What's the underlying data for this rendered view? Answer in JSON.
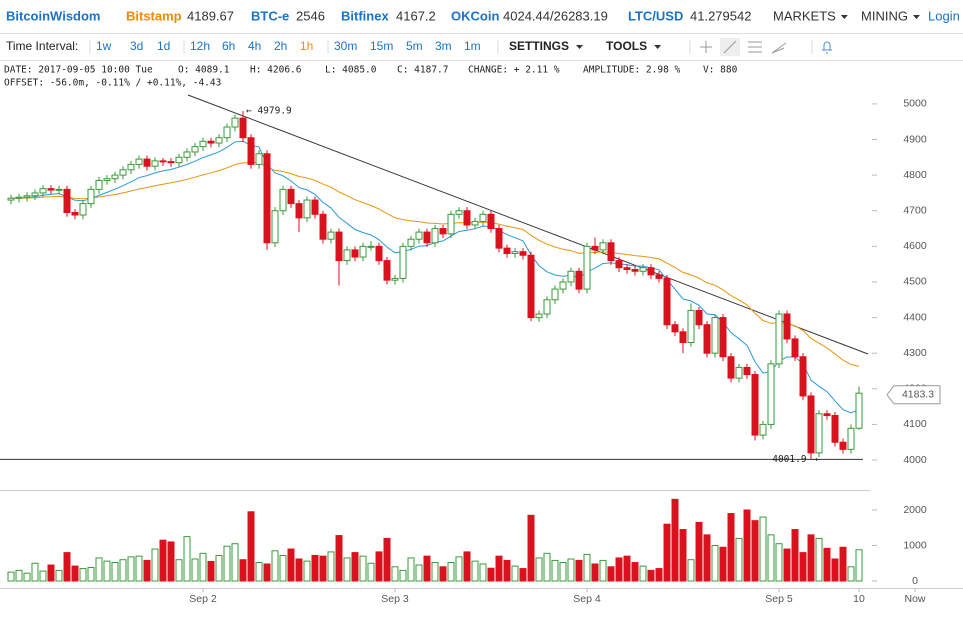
{
  "nav": {
    "brand": "BitcoinWisdom",
    "markets": [
      {
        "name": "Bitstamp",
        "price": 4189.67
      },
      {
        "name": "BTC-e",
        "price": 2546
      },
      {
        "name": "Bitfinex",
        "price": 4167.2
      },
      {
        "name": "OKCoin",
        "price": "4024.44/26283.19"
      },
      {
        "name": "LTC/USD",
        "price": 41.279542
      }
    ],
    "menu": [
      "MARKETS",
      "MINING",
      "Login"
    ]
  },
  "toolbar": {
    "label": "Time Interval:",
    "intervals": [
      "1w",
      "3d",
      "1d",
      "12h",
      "6h",
      "4h",
      "2h",
      "1h",
      "30m",
      "15m",
      "5m",
      "3m",
      "1m"
    ],
    "active_interval": "1h",
    "buttons": [
      "SETTINGS",
      "TOOLS"
    ]
  },
  "info": {
    "line1": [
      "DATE: 2017-09-05 10:00 Tue",
      "O: 4089.1",
      "H: 4206.6",
      "L: 4085.0",
      "C: 4187.7",
      "CHANGE: + 2.11 %",
      "AMPLITUDE: 2.98 %",
      "V: 880"
    ],
    "line2": "OFFSET: -56.0m, -0.11% / +0.11%, -4.43"
  },
  "chart_data": {
    "type": "candlestick",
    "open": [
      4730,
      4735,
      4738,
      4742,
      4750,
      4762,
      4758,
      4760,
      4695,
      4688,
      4720,
      4760,
      4785,
      4790,
      4800,
      4815,
      4830,
      4845,
      4825,
      4840,
      4838,
      4835,
      4850,
      4865,
      4880,
      4895,
      4890,
      4905,
      4935,
      4960,
      4905,
      4830,
      4860,
      4610,
      4700,
      4760,
      4720,
      4680,
      4730,
      4690,
      4620,
      4640,
      4560,
      4590,
      4570,
      4600,
      4600,
      4560,
      4505,
      4510,
      4600,
      4620,
      4640,
      4610,
      4650,
      4635,
      4690,
      4700,
      4660,
      4670,
      4690,
      4650,
      4595,
      4580,
      4585,
      4575,
      4400,
      4410,
      4450,
      4480,
      4500,
      4530,
      4480,
      4600,
      4590,
      4610,
      4560,
      4540,
      4535,
      4530,
      4540,
      4520,
      4510,
      4380,
      4360,
      4330,
      4420,
      4380,
      4300,
      4400,
      4290,
      4230,
      4260,
      4240,
      4070,
      4100,
      4270,
      4410,
      4340,
      4290,
      4180,
      4020,
      4130,
      4125,
      4050,
      4030,
      4089.1
    ],
    "high": [
      4745,
      4748,
      4752,
      4760,
      4772,
      4772,
      4770,
      4770,
      4705,
      4730,
      4770,
      4795,
      4800,
      4810,
      4825,
      4840,
      4855,
      4855,
      4850,
      4848,
      4848,
      4860,
      4875,
      4890,
      4905,
      4905,
      4915,
      4945,
      4970,
      4979.9,
      4915,
      4870,
      4870,
      4710,
      4770,
      4770,
      4730,
      4740,
      4740,
      4700,
      4650,
      4650,
      4600,
      4600,
      4610,
      4615,
      4610,
      4570,
      4520,
      4610,
      4630,
      4650,
      4650,
      4660,
      4660,
      4700,
      4710,
      4710,
      4680,
      4700,
      4700,
      4660,
      4605,
      4595,
      4595,
      4585,
      4420,
      4460,
      4490,
      4510,
      4540,
      4540,
      4610,
      4625,
      4620,
      4620,
      4570,
      4550,
      4545,
      4550,
      4550,
      4530,
      4520,
      4390,
      4370,
      4440,
      4430,
      4390,
      4410,
      4410,
      4300,
      4270,
      4270,
      4250,
      4110,
      4280,
      4420,
      4420,
      4350,
      4300,
      4190,
      4140,
      4140,
      4135,
      4060,
      4100,
      4206.6
    ],
    "low": [
      4718,
      4723,
      4726,
      4730,
      4738,
      4746,
      4746,
      4683,
      4676,
      4676,
      4708,
      4748,
      4773,
      4778,
      4788,
      4803,
      4818,
      4813,
      4813,
      4826,
      4823,
      4823,
      4838,
      4853,
      4868,
      4878,
      4878,
      4893,
      4923,
      4893,
      4818,
      4818,
      4590,
      4598,
      4688,
      4708,
      4640,
      4668,
      4678,
      4608,
      4608,
      4490,
      4548,
      4558,
      4558,
      4588,
      4548,
      4493,
      4493,
      4498,
      4588,
      4608,
      4598,
      4598,
      4623,
      4623,
      4678,
      4648,
      4648,
      4658,
      4638,
      4583,
      4568,
      4568,
      4563,
      4390,
      4388,
      4398,
      4438,
      4468,
      4488,
      4468,
      4468,
      4578,
      4578,
      4548,
      4528,
      4523,
      4518,
      4518,
      4508,
      4498,
      4368,
      4348,
      4300,
      4318,
      4368,
      4288,
      4288,
      4278,
      4218,
      4218,
      4228,
      4055,
      4058,
      4088,
      4258,
      4328,
      4278,
      4168,
      4001.9,
      4008,
      4113,
      4038,
      4018,
      4018,
      4085.0
    ],
    "close": [
      4735,
      4738,
      4742,
      4750,
      4762,
      4758,
      4760,
      4695,
      4688,
      4720,
      4760,
      4785,
      4790,
      4800,
      4815,
      4830,
      4845,
      4825,
      4840,
      4838,
      4835,
      4850,
      4865,
      4880,
      4895,
      4890,
      4905,
      4935,
      4960,
      4905,
      4830,
      4860,
      4610,
      4700,
      4760,
      4720,
      4680,
      4730,
      4690,
      4620,
      4640,
      4560,
      4590,
      4570,
      4600,
      4600,
      4560,
      4505,
      4510,
      4600,
      4620,
      4640,
      4610,
      4650,
      4635,
      4690,
      4700,
      4660,
      4670,
      4690,
      4650,
      4595,
      4580,
      4585,
      4575,
      4400,
      4410,
      4450,
      4480,
      4500,
      4530,
      4480,
      4600,
      4590,
      4610,
      4560,
      4540,
      4535,
      4530,
      4540,
      4520,
      4510,
      4380,
      4360,
      4330,
      4420,
      4380,
      4300,
      4400,
      4290,
      4230,
      4260,
      4240,
      4070,
      4100,
      4270,
      4410,
      4340,
      4290,
      4180,
      4020,
      4130,
      4125,
      4050,
      4030,
      4089.1,
      4187.7
    ],
    "volume": [
      250,
      300,
      220,
      500,
      280,
      450,
      300,
      800,
      420,
      350,
      380,
      650,
      560,
      520,
      600,
      680,
      700,
      580,
      900,
      1150,
      1100,
      600,
      1250,
      620,
      780,
      550,
      720,
      980,
      1050,
      600,
      1950,
      520,
      480,
      850,
      720,
      900,
      620,
      560,
      720,
      700,
      820,
      1280,
      650,
      800,
      700,
      500,
      820,
      1200,
      400,
      300,
      650,
      450,
      700,
      520,
      400,
      520,
      680,
      820,
      560,
      480,
      360,
      700,
      580,
      420,
      350,
      1850,
      650,
      780,
      580,
      520,
      620,
      580,
      750,
      480,
      580,
      400,
      650,
      700,
      520,
      420,
      300,
      350,
      1600,
      2300,
      1450,
      600,
      1650,
      1300,
      1000,
      950,
      1900,
      1200,
      2000,
      1700,
      1800,
      1300,
      1050,
      900,
      1450,
      800,
      1300,
      1200,
      920,
      620,
      950,
      400,
      880
    ],
    "up_color": "#3a9a3a",
    "down_color": "#d9121f",
    "ma_colors": [
      "#2a9ad8",
      "#e8960c"
    ],
    "xlim": [
      -1.375,
      119
    ],
    "xticks": [
      {
        "value": 24,
        "label": "Sep 2"
      },
      {
        "value": 48,
        "label": "Sep 3"
      },
      {
        "value": 72,
        "label": "Sep 4"
      },
      {
        "value": 96,
        "label": "Sep 5"
      },
      {
        "value": 106,
        "label": "10"
      },
      {
        "value": 113,
        "label": "Now"
      }
    ],
    "ylim": [
      3972,
      5039
    ],
    "yticks": [
      4000,
      4100,
      4200,
      4300,
      4400,
      4500,
      4600,
      4700,
      4800,
      4900,
      5000
    ],
    "volume_lim": [
      -197,
      2507
    ],
    "volume_ticks": [
      0,
      1000,
      2000
    ],
    "last_price": 4183.3,
    "annotations": [
      {
        "value": 4979.9,
        "label": "← 4979.9"
      },
      {
        "value": 4001.9,
        "label": "4001.9 →"
      }
    ],
    "grid": false
  }
}
